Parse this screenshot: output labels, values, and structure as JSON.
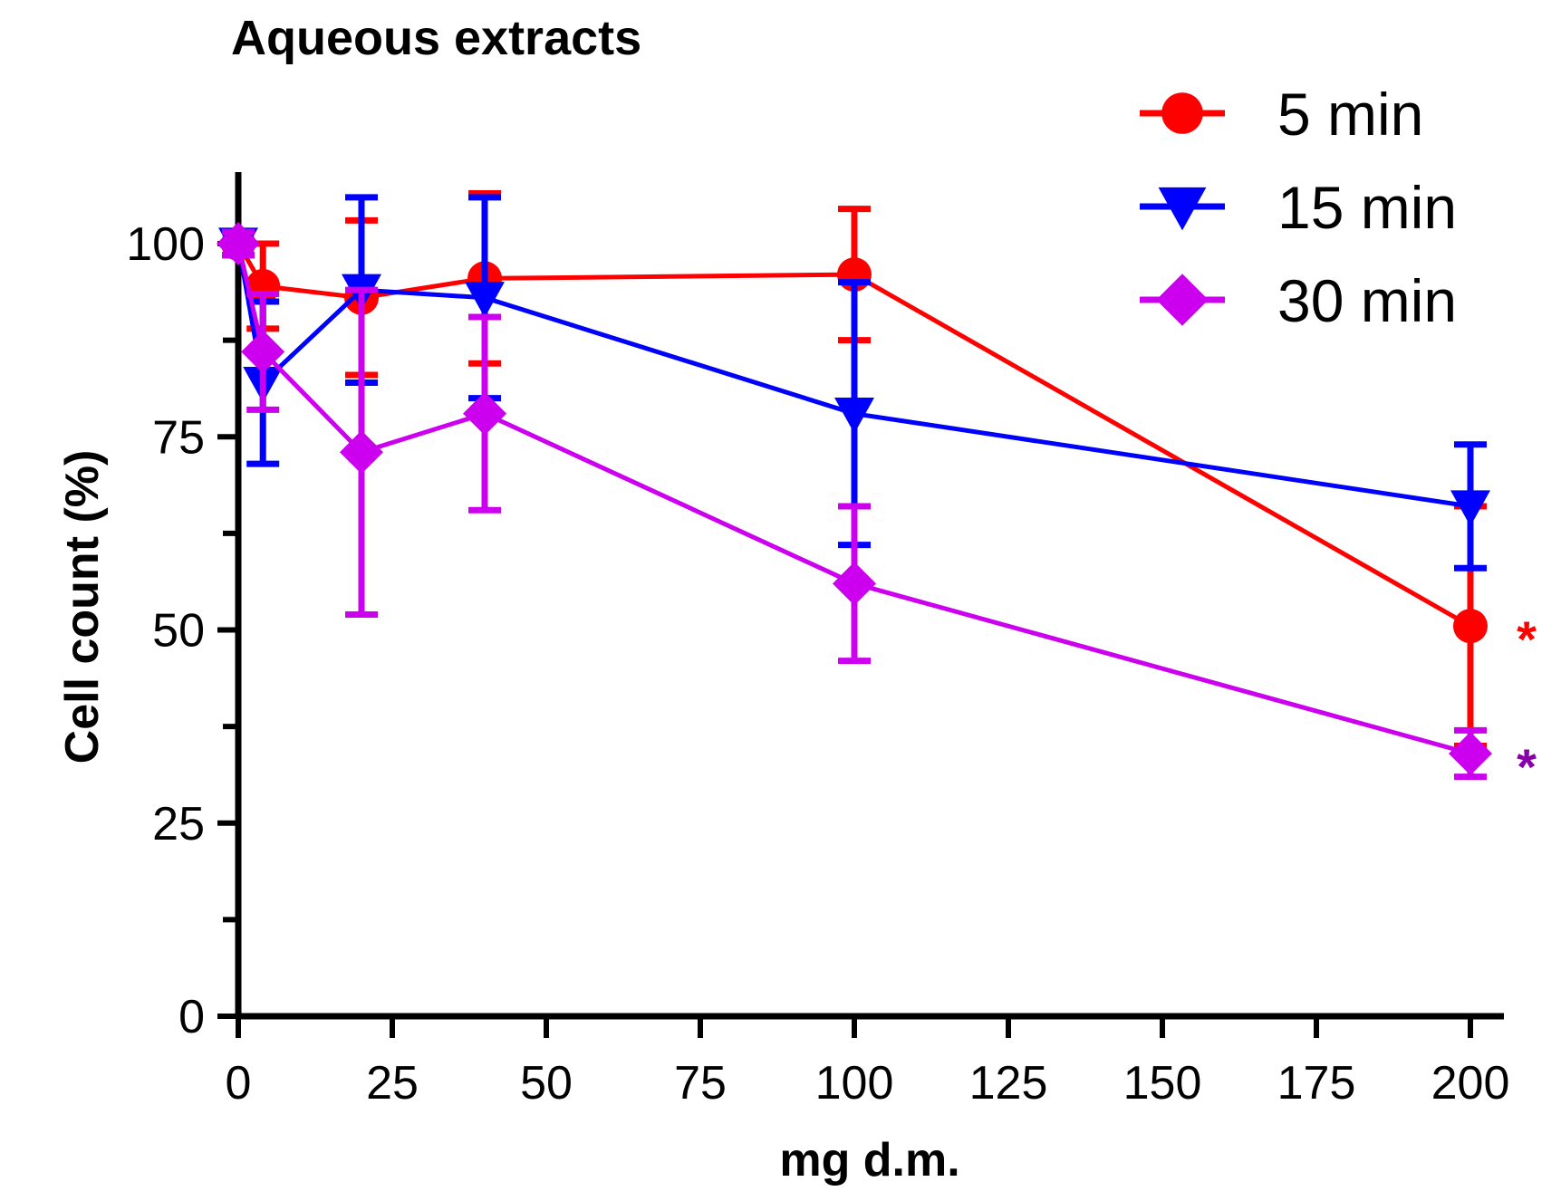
{
  "chart_data": {
    "type": "line",
    "title": "Aqueous extracts",
    "xlabel": "mg d.m.",
    "ylabel": "Cell count (%)",
    "xlim": [
      0,
      205
    ],
    "ylim": [
      0,
      110
    ],
    "xticks": [
      0,
      25,
      50,
      75,
      100,
      125,
      150,
      175,
      200
    ],
    "xtick_labels": [
      "0",
      "25",
      "50",
      "75",
      "100",
      "125",
      "150",
      "175",
      "200"
    ],
    "yticks": [
      0,
      25,
      50,
      75,
      100
    ],
    "ytick_labels": [
      "0",
      "25",
      "50",
      "75",
      "100"
    ],
    "yminor_ticks": [
      12.5,
      37.5,
      62.5,
      87.5
    ],
    "grid": false,
    "legend_position": "top-right",
    "series": [
      {
        "name": "5 min",
        "color": "#ff0000",
        "marker": "circle",
        "x": [
          0,
          4,
          20,
          40,
          100,
          200
        ],
        "y": [
          100,
          94.5,
          93,
          95.5,
          96,
          50.5
        ],
        "err": [
          1.5,
          5.5,
          10,
          11,
          8.5,
          15.5
        ],
        "significance": "*"
      },
      {
        "name": "15 min",
        "color": "#0000ff",
        "marker": "triangle-down",
        "x": [
          0,
          4,
          20,
          40,
          100,
          200
        ],
        "y": [
          100,
          82,
          94,
          93,
          78,
          66
        ],
        "err": [
          1.5,
          10.5,
          12,
          13,
          17,
          8
        ]
      },
      {
        "name": "30 min",
        "color": "#cc00ee",
        "marker": "diamond",
        "x": [
          0,
          4,
          20,
          40,
          100,
          200
        ],
        "y": [
          100,
          86,
          73,
          78,
          56,
          34
        ],
        "err": [
          1.5,
          7.5,
          21,
          12.5,
          10,
          3
        ],
        "significance": "*",
        "significance_color": "#8800aa"
      }
    ]
  }
}
